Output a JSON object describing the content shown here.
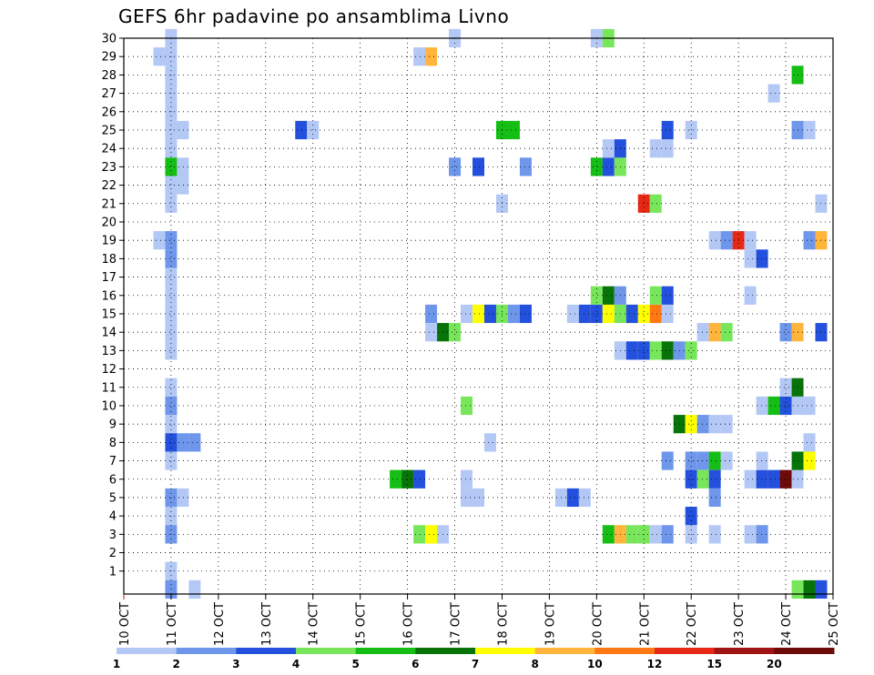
{
  "chart_data": {
    "type": "heatmap",
    "title": "GEFS 6hr padavine po ansamblima Livno",
    "x_tick_labels": [
      "10 OCT",
      "11 OCT",
      "12 OCT",
      "13 OCT",
      "14 OCT",
      "15 OCT",
      "16 OCT",
      "17 OCT",
      "18 OCT",
      "19 OCT",
      "20 OCT",
      "21 OCT",
      "22 OCT",
      "23 OCT",
      "24 OCT",
      "25 OCT"
    ],
    "y_tick_labels": [
      "1",
      "2",
      "3",
      "4",
      "5",
      "6",
      "7",
      "8",
      "9",
      "10",
      "11",
      "12",
      "13",
      "14",
      "15",
      "16",
      "17",
      "18",
      "19",
      "20",
      "21",
      "22",
      "23",
      "24",
      "25",
      "26",
      "27",
      "28",
      "29",
      "30"
    ],
    "x_range_days": [
      0,
      15
    ],
    "y_range": [
      0,
      30
    ],
    "grid": "dotted",
    "legend_position": "bottom",
    "legend": {
      "colors": [
        "#b4c8f5",
        "#6e96eb",
        "#2350dc",
        "#78e65a",
        "#14be14",
        "#087308",
        "#ffff00",
        "#ffb43c",
        "#ff7814",
        "#e62814",
        "#a01414",
        "#6e0a0a"
      ],
      "labels": [
        "1",
        "2",
        "3",
        "4",
        "5",
        "6",
        "7",
        "8",
        "10",
        "12",
        "15",
        "20"
      ]
    },
    "cells": [
      {
        "day": 1.0,
        "ens": 30,
        "c": 0
      },
      {
        "day": 1.0,
        "ens": 29,
        "c": 0
      },
      {
        "day": 1.0,
        "ens": 28,
        "c": 0
      },
      {
        "day": 1.0,
        "ens": 27,
        "c": 0
      },
      {
        "day": 1.0,
        "ens": 26,
        "c": 0
      },
      {
        "day": 1.0,
        "ens": 25,
        "c": 0
      },
      {
        "day": 1.0,
        "ens": 24,
        "c": 0
      },
      {
        "day": 1.0,
        "ens": 23,
        "c": 4
      },
      {
        "day": 1.0,
        "ens": 22,
        "c": 0
      },
      {
        "day": 1.0,
        "ens": 21,
        "c": 0
      },
      {
        "day": 1.0,
        "ens": 19,
        "c": 1
      },
      {
        "day": 1.0,
        "ens": 18,
        "c": 1
      },
      {
        "day": 1.0,
        "ens": 17,
        "c": 0
      },
      {
        "day": 1.0,
        "ens": 16,
        "c": 0
      },
      {
        "day": 1.0,
        "ens": 15,
        "c": 0
      },
      {
        "day": 1.0,
        "ens": 14,
        "c": 0
      },
      {
        "day": 1.0,
        "ens": 13,
        "c": 0
      },
      {
        "day": 1.0,
        "ens": 11,
        "c": 0
      },
      {
        "day": 1.0,
        "ens": 10,
        "c": 1
      },
      {
        "day": 1.0,
        "ens": 9,
        "c": 0
      },
      {
        "day": 1.0,
        "ens": 8,
        "c": 2
      },
      {
        "day": 1.0,
        "ens": 7,
        "c": 0
      },
      {
        "day": 1.0,
        "ens": 5,
        "c": 1
      },
      {
        "day": 1.0,
        "ens": 4,
        "c": 0
      },
      {
        "day": 1.0,
        "ens": 3,
        "c": 1
      },
      {
        "day": 1.0,
        "ens": 1,
        "c": 0
      },
      {
        "day": 1.0,
        "ens": 0,
        "c": 1
      },
      {
        "day": 0.75,
        "ens": 29,
        "c": 0
      },
      {
        "day": 0.75,
        "ens": 19,
        "c": 0
      },
      {
        "day": 1.25,
        "ens": 25,
        "c": 0
      },
      {
        "day": 1.25,
        "ens": 23,
        "c": 0
      },
      {
        "day": 1.25,
        "ens": 22,
        "c": 0
      },
      {
        "day": 1.25,
        "ens": 8,
        "c": 1
      },
      {
        "day": 1.5,
        "ens": 8,
        "c": 1
      },
      {
        "day": 1.25,
        "ens": 5,
        "c": 0
      },
      {
        "day": 1.5,
        "ens": 0,
        "c": 0
      },
      {
        "day": 3.75,
        "ens": 25,
        "c": 2
      },
      {
        "day": 4.0,
        "ens": 25,
        "c": 0
      },
      {
        "day": 5.75,
        "ens": 6,
        "c": 4
      },
      {
        "day": 6.0,
        "ens": 6,
        "c": 5
      },
      {
        "day": 6.25,
        "ens": 6,
        "c": 2
      },
      {
        "day": 6.25,
        "ens": 29,
        "c": 0
      },
      {
        "day": 6.5,
        "ens": 29,
        "c": 7
      },
      {
        "day": 6.25,
        "ens": 3,
        "c": 3
      },
      {
        "day": 6.5,
        "ens": 3,
        "c": 6
      },
      {
        "day": 6.75,
        "ens": 3,
        "c": 0
      },
      {
        "day": 6.5,
        "ens": 15,
        "c": 1
      },
      {
        "day": 6.5,
        "ens": 14,
        "c": 0
      },
      {
        "day": 6.75,
        "ens": 14,
        "c": 5
      },
      {
        "day": 7.0,
        "ens": 14,
        "c": 3
      },
      {
        "day": 7.0,
        "ens": 30,
        "c": 0
      },
      {
        "day": 7.0,
        "ens": 23,
        "c": 1
      },
      {
        "day": 7.25,
        "ens": 15,
        "c": 0
      },
      {
        "day": 7.5,
        "ens": 15,
        "c": 6
      },
      {
        "day": 7.75,
        "ens": 15,
        "c": 2
      },
      {
        "day": 8.0,
        "ens": 15,
        "c": 3
      },
      {
        "day": 8.25,
        "ens": 15,
        "c": 1
      },
      {
        "day": 8.5,
        "ens": 15,
        "c": 2
      },
      {
        "day": 7.25,
        "ens": 10,
        "c": 3
      },
      {
        "day": 7.25,
        "ens": 6,
        "c": 0
      },
      {
        "day": 7.25,
        "ens": 5,
        "c": 0
      },
      {
        "day": 7.5,
        "ens": 5,
        "c": 0
      },
      {
        "day": 7.5,
        "ens": 23,
        "c": 2
      },
      {
        "day": 8.0,
        "ens": 25,
        "c": 4
      },
      {
        "day": 8.25,
        "ens": 25,
        "c": 4
      },
      {
        "day": 8.0,
        "ens": 21,
        "c": 0
      },
      {
        "day": 7.75,
        "ens": 8,
        "c": 0
      },
      {
        "day": 8.5,
        "ens": 23,
        "c": 1
      },
      {
        "day": 9.25,
        "ens": 5,
        "c": 0
      },
      {
        "day": 9.5,
        "ens": 5,
        "c": 2
      },
      {
        "day": 9.75,
        "ens": 5,
        "c": 0
      },
      {
        "day": 9.5,
        "ens": 15,
        "c": 0
      },
      {
        "day": 9.75,
        "ens": 15,
        "c": 2
      },
      {
        "day": 10.0,
        "ens": 15,
        "c": 2
      },
      {
        "day": 10.25,
        "ens": 15,
        "c": 6
      },
      {
        "day": 10.5,
        "ens": 15,
        "c": 3
      },
      {
        "day": 10.75,
        "ens": 15,
        "c": 2
      },
      {
        "day": 11.0,
        "ens": 15,
        "c": 6
      },
      {
        "day": 11.25,
        "ens": 15,
        "c": 8
      },
      {
        "day": 11.5,
        "ens": 15,
        "c": 0
      },
      {
        "day": 10.0,
        "ens": 30,
        "c": 0
      },
      {
        "day": 10.25,
        "ens": 30,
        "c": 3
      },
      {
        "day": 10.0,
        "ens": 23,
        "c": 4
      },
      {
        "day": 10.25,
        "ens": 23,
        "c": 2
      },
      {
        "day": 10.5,
        "ens": 23,
        "c": 3
      },
      {
        "day": 10.25,
        "ens": 24,
        "c": 0
      },
      {
        "day": 10.5,
        "ens": 24,
        "c": 2
      },
      {
        "day": 10.0,
        "ens": 16,
        "c": 3
      },
      {
        "day": 10.25,
        "ens": 16,
        "c": 5
      },
      {
        "day": 10.5,
        "ens": 16,
        "c": 1
      },
      {
        "day": 11.25,
        "ens": 16,
        "c": 3
      },
      {
        "day": 11.5,
        "ens": 16,
        "c": 2
      },
      {
        "day": 10.5,
        "ens": 13,
        "c": 0
      },
      {
        "day": 10.75,
        "ens": 13,
        "c": 2
      },
      {
        "day": 11.0,
        "ens": 13,
        "c": 2
      },
      {
        "day": 11.25,
        "ens": 13,
        "c": 3
      },
      {
        "day": 11.5,
        "ens": 13,
        "c": 5
      },
      {
        "day": 11.75,
        "ens": 13,
        "c": 1
      },
      {
        "day": 12.0,
        "ens": 13,
        "c": 3
      },
      {
        "day": 10.25,
        "ens": 3,
        "c": 4
      },
      {
        "day": 10.5,
        "ens": 3,
        "c": 7
      },
      {
        "day": 10.75,
        "ens": 3,
        "c": 3
      },
      {
        "day": 11.0,
        "ens": 3,
        "c": 3
      },
      {
        "day": 11.25,
        "ens": 3,
        "c": 0
      },
      {
        "day": 11.5,
        "ens": 3,
        "c": 1
      },
      {
        "day": 11.0,
        "ens": 21,
        "c": 9
      },
      {
        "day": 11.25,
        "ens": 21,
        "c": 3
      },
      {
        "day": 11.25,
        "ens": 24,
        "c": 0
      },
      {
        "day": 11.5,
        "ens": 24,
        "c": 0
      },
      {
        "day": 11.5,
        "ens": 25,
        "c": 2
      },
      {
        "day": 11.5,
        "ens": 7,
        "c": 1
      },
      {
        "day": 11.75,
        "ens": 9,
        "c": 5
      },
      {
        "day": 12.0,
        "ens": 9,
        "c": 6
      },
      {
        "day": 12.25,
        "ens": 9,
        "c": 1
      },
      {
        "day": 12.5,
        "ens": 9,
        "c": 0
      },
      {
        "day": 12.75,
        "ens": 9,
        "c": 0
      },
      {
        "day": 12.0,
        "ens": 25,
        "c": 0
      },
      {
        "day": 12.0,
        "ens": 7,
        "c": 1
      },
      {
        "day": 12.25,
        "ens": 7,
        "c": 1
      },
      {
        "day": 12.5,
        "ens": 7,
        "c": 4
      },
      {
        "day": 12.75,
        "ens": 7,
        "c": 0
      },
      {
        "day": 12.0,
        "ens": 6,
        "c": 2
      },
      {
        "day": 12.25,
        "ens": 6,
        "c": 3
      },
      {
        "day": 12.5,
        "ens": 6,
        "c": 2
      },
      {
        "day": 12.0,
        "ens": 4,
        "c": 2
      },
      {
        "day": 12.0,
        "ens": 3,
        "c": 0
      },
      {
        "day": 12.5,
        "ens": 5,
        "c": 1
      },
      {
        "day": 12.5,
        "ens": 3,
        "c": 0
      },
      {
        "day": 12.25,
        "ens": 14,
        "c": 0
      },
      {
        "day": 12.5,
        "ens": 14,
        "c": 7
      },
      {
        "day": 12.75,
        "ens": 14,
        "c": 3
      },
      {
        "day": 12.5,
        "ens": 19,
        "c": 0
      },
      {
        "day": 12.75,
        "ens": 19,
        "c": 1
      },
      {
        "day": 13.0,
        "ens": 19,
        "c": 9
      },
      {
        "day": 13.25,
        "ens": 19,
        "c": 0
      },
      {
        "day": 13.25,
        "ens": 18,
        "c": 0
      },
      {
        "day": 13.5,
        "ens": 18,
        "c": 2
      },
      {
        "day": 13.25,
        "ens": 16,
        "c": 0
      },
      {
        "day": 13.25,
        "ens": 6,
        "c": 0
      },
      {
        "day": 13.5,
        "ens": 6,
        "c": 2
      },
      {
        "day": 13.75,
        "ens": 6,
        "c": 2
      },
      {
        "day": 14.0,
        "ens": 6,
        "c": 11
      },
      {
        "day": 14.25,
        "ens": 6,
        "c": 0
      },
      {
        "day": 13.25,
        "ens": 3,
        "c": 0
      },
      {
        "day": 13.5,
        "ens": 3,
        "c": 1
      },
      {
        "day": 13.5,
        "ens": 7,
        "c": 0
      },
      {
        "day": 13.5,
        "ens": 10,
        "c": 0
      },
      {
        "day": 13.75,
        "ens": 10,
        "c": 4
      },
      {
        "day": 14.0,
        "ens": 10,
        "c": 2
      },
      {
        "day": 14.25,
        "ens": 10,
        "c": 0
      },
      {
        "day": 14.5,
        "ens": 10,
        "c": 0
      },
      {
        "day": 14.0,
        "ens": 11,
        "c": 0
      },
      {
        "day": 14.25,
        "ens": 11,
        "c": 5
      },
      {
        "day": 14.0,
        "ens": 14,
        "c": 1
      },
      {
        "day": 14.25,
        "ens": 14,
        "c": 7
      },
      {
        "day": 14.75,
        "ens": 14,
        "c": 2
      },
      {
        "day": 13.75,
        "ens": 27,
        "c": 0
      },
      {
        "day": 14.25,
        "ens": 28,
        "c": 4
      },
      {
        "day": 14.25,
        "ens": 25,
        "c": 1
      },
      {
        "day": 14.5,
        "ens": 25,
        "c": 0
      },
      {
        "day": 14.5,
        "ens": 19,
        "c": 1
      },
      {
        "day": 14.75,
        "ens": 19,
        "c": 7
      },
      {
        "day": 14.75,
        "ens": 21,
        "c": 0
      },
      {
        "day": 14.25,
        "ens": 7,
        "c": 5
      },
      {
        "day": 14.5,
        "ens": 7,
        "c": 6
      },
      {
        "day": 14.5,
        "ens": 8,
        "c": 0
      },
      {
        "day": 14.25,
        "ens": 0,
        "c": 3
      },
      {
        "day": 14.5,
        "ens": 0,
        "c": 5
      },
      {
        "day": 14.75,
        "ens": 0,
        "c": 2
      }
    ]
  }
}
